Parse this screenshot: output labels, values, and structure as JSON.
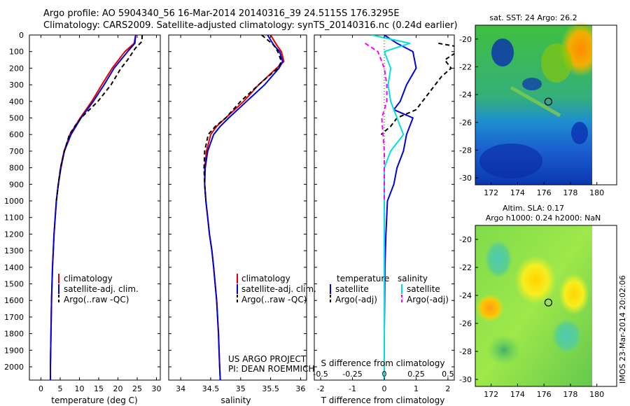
{
  "header": {
    "line1": "Argo profile: AO 5904340_56 16-Mar-2014 20140316_39 24.5115S 176.3295E",
    "line2": "Climatology: CARS2009. Satellite-adjusted climatology: synTS_20140316.nc (0.24d earlier)"
  },
  "colors": {
    "climatology": "#e00000",
    "satellite": "#0000e0",
    "argo": "#000000",
    "salinity_satellite": "#00e0e0",
    "salinity_argo": "#ff00ff"
  },
  "side_texts": {
    "sst_title": "sat. SST: 24 Argo: 26.2",
    "sla_title1": "Altim. SLA: 0.17",
    "sla_title2": "Argo h1000: 0.24 h2000: NaN",
    "project_line1": "US ARGO PROJECT",
    "project_line2": "PI: DEAN ROEMMICH",
    "imos_stamp": "IMOS 23-Mar-2014 20:02:06"
  },
  "chart_data": [
    {
      "type": "line",
      "xlabel": "temperature (deg C)",
      "ylabel": "",
      "xlim": [
        -3,
        31
      ],
      "ylim": [
        2080,
        0
      ],
      "x_ticks": [
        0,
        5,
        10,
        15,
        20,
        25,
        30
      ],
      "x_tick_labels": [
        "0",
        "5",
        "10",
        "15",
        "20",
        "25",
        "30"
      ],
      "y_ticks": [
        0,
        100,
        200,
        300,
        400,
        500,
        600,
        700,
        800,
        900,
        1000,
        1100,
        1200,
        1300,
        1400,
        1500,
        1600,
        1700,
        1800,
        1900,
        2000
      ],
      "y_tick_labels": [
        "0",
        "100",
        "200",
        "300",
        "400",
        "500",
        "600",
        "700",
        "800",
        "900",
        "1000",
        "1100",
        "1200",
        "1300",
        "1400",
        "1500",
        "1600",
        "1700",
        "1800",
        "1900",
        "2000"
      ],
      "legend": [
        "climatology",
        "satellite-adj. clim.",
        "Argo(..raw -QC)"
      ],
      "legend_placement": "lower-right",
      "series": [
        {
          "name": "climatology",
          "color": "red",
          "depth": [
            0,
            50,
            100,
            200,
            300,
            400,
            500,
            600,
            700,
            800,
            900,
            1000,
            1200,
            1400,
            1600,
            1800,
            2000,
            2080
          ],
          "values": [
            24.6,
            24.2,
            21.8,
            18.5,
            15.8,
            13.2,
            10.2,
            7.5,
            6.0,
            5.1,
            4.5,
            4.0,
            3.4,
            3.0,
            2.75,
            2.6,
            2.45,
            2.45
          ]
        },
        {
          "name": "satellite-adj. clim.",
          "color": "blue",
          "depth": [
            0,
            50,
            100,
            200,
            300,
            400,
            500,
            600,
            700,
            800,
            900,
            1000,
            1200,
            1400,
            1600,
            1800,
            2000,
            2080
          ],
          "values": [
            24.6,
            24.4,
            22.5,
            19.0,
            16.4,
            13.6,
            10.4,
            7.8,
            6.1,
            5.2,
            4.5,
            4.0,
            3.4,
            3.0,
            2.75,
            2.6,
            2.45,
            2.45
          ]
        },
        {
          "name": "Argo(..raw -QC)",
          "color": "black",
          "depth": [
            0,
            40,
            80,
            150,
            200,
            300,
            400,
            500,
            550,
            600,
            700,
            800,
            900,
            1000
          ],
          "values": [
            26.3,
            26.2,
            24.5,
            22.5,
            20.8,
            18.2,
            14.8,
            10.4,
            8.8,
            7.4,
            6.1,
            5.1,
            4.5,
            4.0
          ]
        }
      ]
    },
    {
      "type": "line",
      "xlabel": "salinity",
      "ylabel": "",
      "xlim": [
        33.8,
        36.1
      ],
      "ylim": [
        2080,
        0
      ],
      "x_ticks": [
        34,
        34.5,
        35,
        35.5,
        36
      ],
      "x_tick_labels": [
        "34",
        "34.5",
        "35",
        "35.5",
        "36"
      ],
      "legend": [
        "climatology",
        "satellite-adj. clim.",
        "Argo(..raw -QC)"
      ],
      "legend_placement": "lower-right",
      "series": [
        {
          "name": "climatology",
          "color": "red",
          "depth": [
            0,
            60,
            100,
            160,
            200,
            300,
            400,
            500,
            550,
            600,
            700,
            800,
            900,
            1000,
            1100,
            1200,
            1300,
            1400,
            1600,
            1800,
            2000,
            2080
          ],
          "values": [
            35.5,
            35.6,
            35.68,
            35.72,
            35.6,
            35.3,
            35.05,
            34.75,
            34.6,
            34.5,
            34.43,
            34.4,
            34.4,
            34.42,
            34.45,
            34.48,
            34.52,
            34.55,
            34.6,
            34.63,
            34.65,
            34.66
          ]
        },
        {
          "name": "satellite-adj. clim.",
          "color": "blue",
          "depth": [
            0,
            60,
            100,
            160,
            200,
            300,
            400,
            500,
            550,
            600,
            700,
            800,
            900,
            1000,
            1100,
            1200,
            1300,
            1400,
            1600,
            1800,
            2000,
            2080
          ],
          "values": [
            35.45,
            35.55,
            35.65,
            35.7,
            35.64,
            35.4,
            35.1,
            34.8,
            34.66,
            34.55,
            34.45,
            34.41,
            34.4,
            34.42,
            34.45,
            34.48,
            34.52,
            34.55,
            34.6,
            34.63,
            34.65,
            34.66
          ]
        },
        {
          "name": "Argo(..raw -QC)",
          "color": "black",
          "depth": [
            0,
            60,
            100,
            160,
            200,
            300,
            400,
            500,
            550,
            600,
            700,
            800,
            900,
            1000
          ],
          "values": [
            35.35,
            35.55,
            35.62,
            35.68,
            35.62,
            35.3,
            35.0,
            34.75,
            34.58,
            34.46,
            34.4,
            34.39,
            34.4,
            34.42
          ]
        }
      ]
    },
    {
      "type": "line",
      "xlabel": "T difference from climatology",
      "xlabel_top": "S difference from climatology",
      "ylabel": "",
      "xlim": [
        -2.2,
        2.2
      ],
      "ylim": [
        2080,
        0
      ],
      "x_ticks": [
        -2,
        -1,
        0,
        1,
        2
      ],
      "x_tick_labels": [
        "-2",
        "-1",
        "0",
        "1",
        "2"
      ],
      "x_ticks_top_labels": [
        "-0.5",
        "-0.25",
        "0",
        "0.25",
        "0.5"
      ],
      "x_ticks_top_values": [
        -0.5,
        -0.25,
        0,
        0.25,
        0.5
      ],
      "legend_headers": [
        "temperature",
        "salinity"
      ],
      "legend": [
        "satellite",
        "Argo(-adj)",
        "satellite",
        "Argo(-adj)"
      ],
      "legend_placement": "lower-center",
      "series": [
        {
          "name": "temperature satellite",
          "color": "blue",
          "depth": [
            0,
            50,
            100,
            200,
            300,
            400,
            450,
            500,
            600,
            700,
            800,
            900,
            1000,
            1200,
            1400,
            1600,
            1800,
            2000,
            2080
          ],
          "values": [
            0,
            0.4,
            0.9,
            1.0,
            0.7,
            0.5,
            0.3,
            0.9,
            0.7,
            0.6,
            0.4,
            0.3,
            0.1,
            0.05,
            0.02,
            0.01,
            0.0,
            0.0,
            0.0
          ]
        },
        {
          "name": "temperature Argo(-adj)",
          "color": "black",
          "depth": [
            50,
            80,
            100,
            150,
            200,
            250,
            300,
            350,
            400,
            450,
            500,
            550,
            600
          ],
          "values": [
            1.7,
            2.6,
            2.3,
            1.9,
            2.1,
            1.8,
            1.6,
            1.4,
            1.2,
            1.0,
            0.4,
            0.2,
            -0.1
          ]
        },
        {
          "name": "salinity satellite",
          "color": "cyan",
          "depth": [
            0,
            50,
            100,
            200,
            300,
            400,
            500,
            600,
            700,
            800,
            900,
            1000,
            1200,
            1400,
            1600,
            1800,
            2000,
            2080
          ],
          "values": [
            -0.1,
            0.2,
            0.0,
            0.05,
            0.03,
            0.05,
            0.1,
            0.15,
            0.05,
            0.0,
            0.0,
            0.0,
            0.0,
            0.0,
            0.0,
            0.0,
            0.0,
            0.0
          ]
        },
        {
          "name": "salinity Argo(-adj)",
          "color": "magenta",
          "depth": [
            50,
            100,
            200,
            300,
            400,
            500,
            600,
            700,
            800,
            900,
            1000
          ],
          "values": [
            -0.15,
            -0.05,
            0.0,
            0.02,
            0.02,
            -0.02,
            -0.01,
            0.0,
            0.0,
            0.0,
            0.0
          ]
        }
      ]
    },
    {
      "type": "heatmap",
      "title": "sat. SST: 24 Argo: 26.2",
      "xlim": [
        170.8,
        181.5
      ],
      "ylim": [
        -30.5,
        -19
      ],
      "x_ticks": [
        172,
        174,
        176,
        178,
        180
      ],
      "x_tick_labels": [
        "172",
        "174",
        "176",
        "178",
        "180"
      ],
      "y_ticks": [
        -20,
        -22,
        -24,
        -26,
        -28,
        -30
      ],
      "y_tick_labels": [
        "-20",
        "-22",
        "-24",
        "-26",
        "-28",
        "-30"
      ],
      "marker": {
        "lon": 176.33,
        "lat": -24.51
      }
    },
    {
      "type": "heatmap",
      "title": "Altim. SLA: 0.17",
      "xlim": [
        170.8,
        181.5
      ],
      "ylim": [
        -30.5,
        -19
      ],
      "x_ticks": [
        172,
        174,
        176,
        178,
        180
      ],
      "x_tick_labels": [
        "172",
        "174",
        "176",
        "178",
        "180"
      ],
      "y_ticks": [
        -20,
        -22,
        -24,
        -26,
        -28,
        -30
      ],
      "y_tick_labels": [
        "-20",
        "-22",
        "-24",
        "-26",
        "-28",
        "-30"
      ],
      "marker": {
        "lon": 176.33,
        "lat": -24.51
      }
    }
  ]
}
